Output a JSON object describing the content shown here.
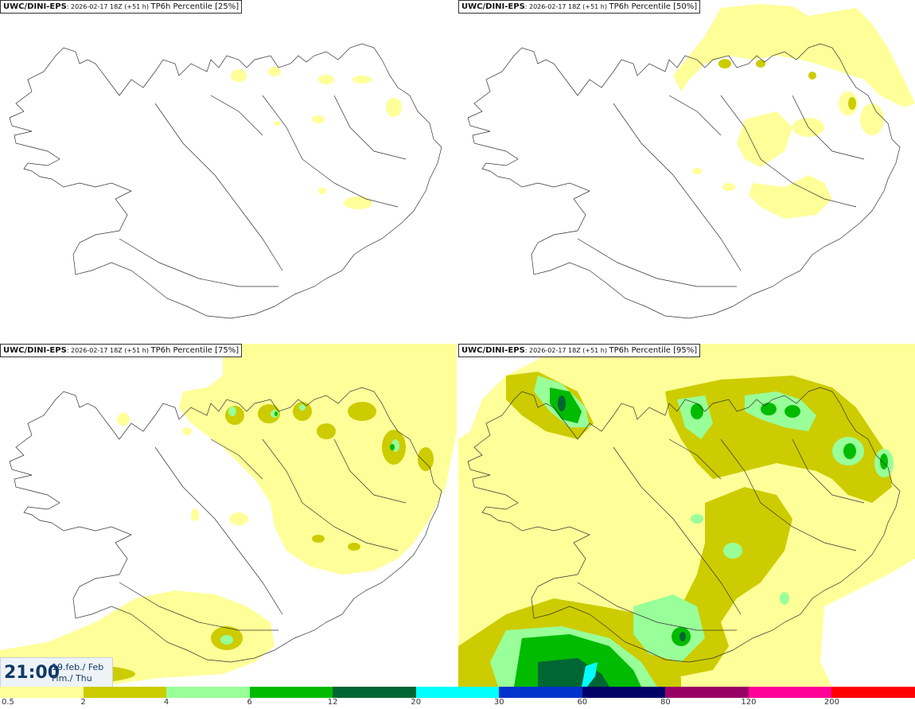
{
  "panels": [
    {
      "model": "UWC/DINI-EPS",
      "meta": ": 2026-02-17 18Z (+51 h) ",
      "product": "TP6h Percentile [25%]"
    },
    {
      "model": "UWC/DINI-EPS",
      "meta": ": 2026-02-17 18Z (+51 h) ",
      "product": "TP6h Percentile [50%]"
    },
    {
      "model": "UWC/DINI-EPS",
      "meta": ": 2026-02-17 18Z (+51 h) ",
      "product": "TP6h Percentile [75%]"
    },
    {
      "model": "UWC/DINI-EPS",
      "meta": ": 2026-02-17 18Z (+51 h) ",
      "product": "TP6h Percentile [95%]"
    }
  ],
  "valid_time": {
    "hour": "21:00",
    "date_line1": "19.feb./ Feb",
    "date_line2": "Fim./ Thu"
  },
  "legend": {
    "colors": [
      "#ffff99",
      "#cccc00",
      "#99ff99",
      "#00bb00",
      "#006633",
      "#00ffff",
      "#0033cc",
      "#000066",
      "#990066",
      "#ff0099",
      "#ff0000"
    ],
    "ticks": [
      "0.5",
      "2",
      "4",
      "6",
      "12",
      "20",
      "30",
      "60",
      "80",
      "120",
      "200"
    ]
  },
  "map_region": "Iceland",
  "precip_colors": {
    "light": "#ffff99",
    "moderate": "#cccc00",
    "heavy": "#99ff99",
    "very_heavy": "#00bb00",
    "extreme": "#006633",
    "peak": "#00ffff"
  }
}
